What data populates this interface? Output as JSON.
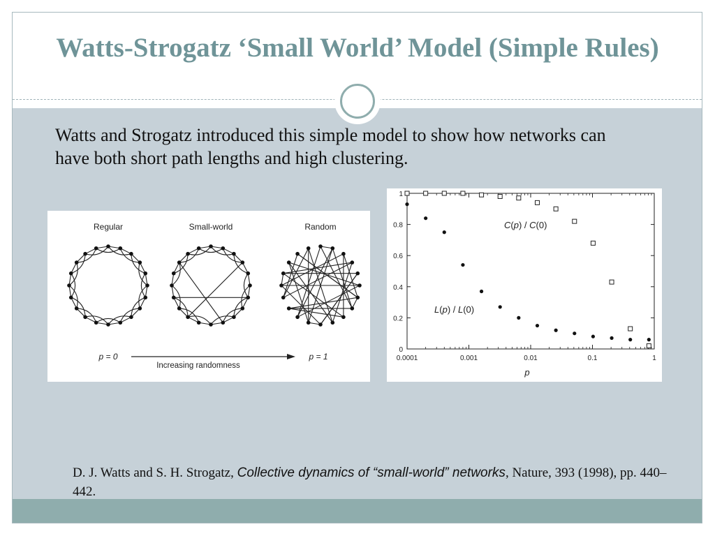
{
  "slide": {
    "title": "Watts-Strogatz ‘Small World’ Model (Simple Rules)",
    "intro": "Watts and Strogatz introduced this simple model to show how networks can have both short path lengths and high clustering.",
    "citation": {
      "authors": "D. J. Watts and S. H. Strogatz, ",
      "article": "Collective dynamics of “small-world” networks",
      "rest": ", Nature, 393 (1998), pp. 440–442."
    },
    "colors": {
      "title": "#6f9498",
      "content_bg": "#c6d1d8",
      "accent": "#8fadad"
    }
  },
  "network_figure": {
    "labels": [
      "Regular",
      "Small-world",
      "Random"
    ],
    "p_start": "p = 0",
    "p_end": "p = 1",
    "arrow_label": "Increasing randomness"
  },
  "chart_data": {
    "type": "scatter",
    "xscale": "log",
    "xlabel": "p",
    "ylabel": "",
    "xlim": [
      0.0001,
      1
    ],
    "ylim": [
      0,
      1
    ],
    "xticks": [
      "0.0001",
      "0.001",
      "0.01",
      "0.1",
      "1"
    ],
    "yticks": [
      "0",
      "0.2",
      "0.4",
      "0.6",
      "0.8",
      "1"
    ],
    "series": [
      {
        "name": "C(p) / C(0)",
        "marker": "open-square",
        "x": [
          0.0001,
          0.0002,
          0.0004,
          0.0008,
          0.0016,
          0.0032,
          0.0064,
          0.0128,
          0.0256,
          0.0512,
          0.1024,
          0.2048,
          0.4096,
          0.8192
        ],
        "y": [
          1.0,
          1.0,
          1.0,
          1.0,
          0.99,
          0.98,
          0.97,
          0.94,
          0.9,
          0.82,
          0.68,
          0.43,
          0.13,
          0.02
        ]
      },
      {
        "name": "L(p) / L(0)",
        "marker": "filled-circle",
        "x": [
          0.0001,
          0.0002,
          0.0004,
          0.0008,
          0.0016,
          0.0032,
          0.0064,
          0.0128,
          0.0256,
          0.0512,
          0.1024,
          0.2048,
          0.4096,
          0.8192
        ],
        "y": [
          0.93,
          0.84,
          0.75,
          0.54,
          0.37,
          0.27,
          0.2,
          0.15,
          0.12,
          0.1,
          0.08,
          0.07,
          0.06,
          0.06
        ]
      }
    ]
  }
}
